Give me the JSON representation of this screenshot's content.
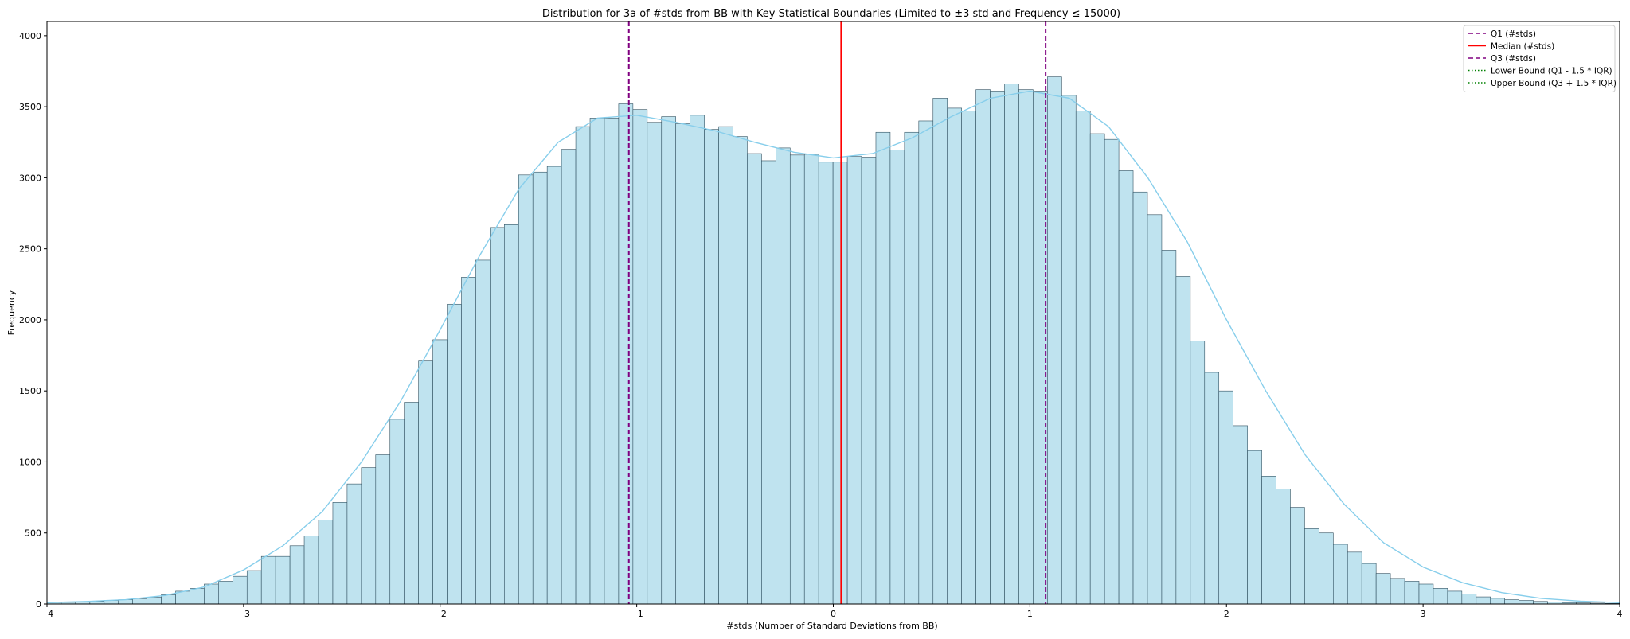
{
  "chart_data": {
    "type": "bar",
    "title": "Distribution for 3a of #stds from BB with Key Statistical Boundaries (Limited to ±3 std and Frequency ≤ 15000)",
    "xlabel": "#stds (Number of Standard Deviations from BB)",
    "ylabel": "Frequency",
    "xlim": [
      -4,
      4
    ],
    "ylim": [
      0,
      4100
    ],
    "xticks": [
      -4,
      -3,
      -2,
      -1,
      0,
      1,
      2,
      3,
      4
    ],
    "xtick_labels": [
      "−4",
      "−3",
      "−2",
      "−1",
      "0",
      "1",
      "2",
      "3",
      "4"
    ],
    "yticks": [
      0,
      500,
      1000,
      1500,
      2000,
      2500,
      3000,
      3500,
      4000
    ],
    "ytick_labels": [
      "0",
      "500",
      "1000",
      "1500",
      "2000",
      "2500",
      "3000",
      "3500",
      "4000"
    ],
    "bin_start": -4,
    "bin_width": 0.0727,
    "bar_color": "#bfe3ef",
    "bar_edge_color": "#2f4f5f",
    "kde_color": "#87ceeb",
    "values": [
      10,
      12,
      15,
      18,
      25,
      30,
      38,
      48,
      65,
      90,
      110,
      140,
      160,
      195,
      235,
      335,
      335,
      410,
      480,
      590,
      715,
      845,
      960,
      1050,
      1300,
      1420,
      1710,
      1860,
      2110,
      2300,
      2420,
      2650,
      2670,
      3020,
      3040,
      3080,
      3200,
      3360,
      3420,
      3420,
      3520,
      3480,
      3390,
      3430,
      3380,
      3440,
      3340,
      3360,
      3290,
      3170,
      3120,
      3210,
      3160,
      3165,
      3110,
      3110,
      3150,
      3145,
      3320,
      3195,
      3320,
      3400,
      3560,
      3490,
      3470,
      3620,
      3610,
      3660,
      3620,
      3610,
      3710,
      3580,
      3470,
      3310,
      3270,
      3050,
      2900,
      2740,
      2490,
      2305,
      1850,
      1630,
      1500,
      1255,
      1080,
      900,
      810,
      680,
      530,
      500,
      420,
      365,
      285,
      215,
      180,
      160,
      140,
      110,
      90,
      70,
      50,
      40,
      30,
      25,
      18,
      14,
      10,
      8,
      6,
      4
    ],
    "kde": {
      "x": [
        -4,
        -3.8,
        -3.6,
        -3.4,
        -3.2,
        -3.0,
        -2.8,
        -2.6,
        -2.4,
        -2.2,
        -2.0,
        -1.8,
        -1.6,
        -1.4,
        -1.2,
        -1.0,
        -0.8,
        -0.6,
        -0.4,
        -0.2,
        0.0,
        0.2,
        0.4,
        0.6,
        0.8,
        1.0,
        1.2,
        1.4,
        1.6,
        1.8,
        2.0,
        2.2,
        2.4,
        2.6,
        2.8,
        3.0,
        3.2,
        3.4,
        3.6,
        3.8,
        4.0
      ],
      "y": [
        10,
        18,
        30,
        60,
        120,
        240,
        410,
        650,
        1000,
        1430,
        1930,
        2450,
        2920,
        3250,
        3420,
        3440,
        3390,
        3330,
        3250,
        3180,
        3140,
        3170,
        3280,
        3430,
        3560,
        3610,
        3560,
        3360,
        3000,
        2550,
        2000,
        1500,
        1050,
        700,
        430,
        260,
        150,
        80,
        40,
        20,
        10
      ]
    },
    "vlines": [
      {
        "name": "Q1 (#stds)",
        "x": -1.04,
        "color": "#800080",
        "style": "dashed"
      },
      {
        "name": "Median (#stds)",
        "x": 0.04,
        "color": "#ff0000",
        "style": "solid"
      },
      {
        "name": "Q3 (#stds)",
        "x": 1.08,
        "color": "#800080",
        "style": "dashed"
      }
    ],
    "legend": {
      "location": "upper right",
      "entries": [
        {
          "label": "Q1 (#stds)",
          "color": "#800080",
          "style": "dashed"
        },
        {
          "label": "Median (#stds)",
          "color": "#ff0000",
          "style": "solid"
        },
        {
          "label": "Q3 (#stds)",
          "color": "#800080",
          "style": "dashed"
        },
        {
          "label": "Lower Bound (Q1 - 1.5 * IQR)",
          "color": "#008000",
          "style": "dotted"
        },
        {
          "label": "Upper Bound (Q3 + 1.5 * IQR)",
          "color": "#008000",
          "style": "dotted"
        }
      ]
    }
  }
}
